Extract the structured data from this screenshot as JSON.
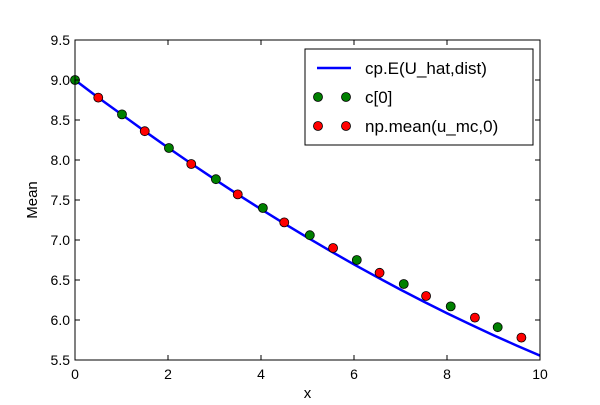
{
  "chart_data": {
    "type": "line",
    "title": "",
    "xlabel": "x",
    "ylabel": "Mean",
    "xlim": [
      0,
      10
    ],
    "ylim": [
      5.5,
      9.5
    ],
    "x_ticks": [
      "0",
      "2",
      "4",
      "6",
      "8",
      "10"
    ],
    "y_ticks": [
      "5.5",
      "6.0",
      "6.5",
      "7.0",
      "7.5",
      "8.0",
      "8.5",
      "9.0",
      "9.5"
    ],
    "grid": false,
    "legend_position": "top-right",
    "series": [
      {
        "name": "cp.E(U_hat,dist)",
        "kind": "line",
        "color": "#0000ff",
        "x": [
          0,
          0.5,
          1,
          1.5,
          2,
          2.5,
          3,
          3.5,
          4,
          4.5,
          5,
          5.5,
          6,
          6.5,
          7,
          7.5,
          8,
          8.5,
          9,
          9.5,
          10
        ],
        "y": [
          9.0,
          8.78,
          8.57,
          8.36,
          8.155,
          7.955,
          7.76,
          7.57,
          7.385,
          7.205,
          7.03,
          6.86,
          6.695,
          6.535,
          6.38,
          6.23,
          6.085,
          5.945,
          5.81,
          5.68,
          5.555
        ]
      },
      {
        "name": "c[0]",
        "kind": "markers",
        "color": "#008000",
        "x": [
          0,
          1.01,
          2.02,
          3.03,
          4.04,
          5.05,
          6.06,
          7.07,
          8.08,
          9.09
        ],
        "y": [
          9.0,
          8.57,
          8.15,
          7.76,
          7.4,
          7.06,
          6.75,
          6.45,
          6.17,
          5.91
        ]
      },
      {
        "name": "np.mean(u_mc,0)",
        "kind": "markers",
        "color": "#ff0000",
        "x": [
          0.5,
          1.5,
          2.5,
          3.5,
          4.5,
          5.55,
          6.55,
          7.55,
          8.6,
          9.6
        ],
        "y": [
          8.78,
          8.36,
          7.95,
          7.57,
          7.22,
          6.9,
          6.59,
          6.3,
          6.03,
          5.78
        ]
      }
    ]
  }
}
